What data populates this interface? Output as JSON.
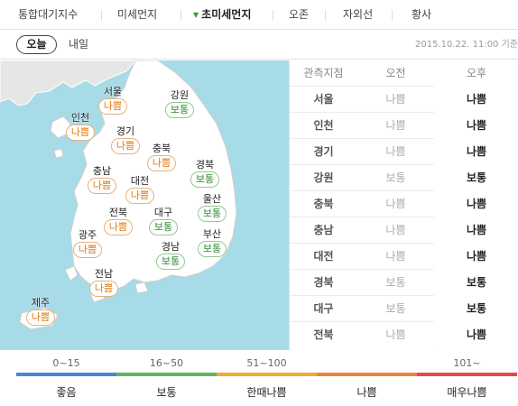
{
  "nav": {
    "tabs": [
      {
        "label": "통합대기지수"
      },
      {
        "label": "미세먼지"
      },
      {
        "label": "초미세먼지"
      },
      {
        "label": "오존"
      },
      {
        "label": "자외선"
      },
      {
        "label": "황사"
      }
    ]
  },
  "day": {
    "today": "오늘",
    "tomorrow": "내일",
    "timestamp": "2015.10.22. 11:00 기준"
  },
  "map": {
    "regions": [
      {
        "name": "서울",
        "status": "나쁨",
        "level": "bad"
      },
      {
        "name": "강원",
        "status": "보통",
        "level": "normal"
      },
      {
        "name": "인천",
        "status": "나쁨",
        "level": "bad"
      },
      {
        "name": "경기",
        "status": "나쁨",
        "level": "bad"
      },
      {
        "name": "충북",
        "status": "나쁨",
        "level": "bad"
      },
      {
        "name": "충남",
        "status": "나쁨",
        "level": "bad"
      },
      {
        "name": "경북",
        "status": "보통",
        "level": "normal"
      },
      {
        "name": "대전",
        "status": "나쁨",
        "level": "bad"
      },
      {
        "name": "울산",
        "status": "보통",
        "level": "normal"
      },
      {
        "name": "전북",
        "status": "나쁨",
        "level": "bad"
      },
      {
        "name": "대구",
        "status": "보통",
        "level": "normal"
      },
      {
        "name": "광주",
        "status": "나쁨",
        "level": "bad"
      },
      {
        "name": "부산",
        "status": "보통",
        "level": "normal"
      },
      {
        "name": "경남",
        "status": "보통",
        "level": "normal"
      },
      {
        "name": "전남",
        "status": "나쁨",
        "level": "bad"
      },
      {
        "name": "제주",
        "status": "나쁨",
        "level": "bad"
      }
    ]
  },
  "table": {
    "headers": [
      "관측지점",
      "오전",
      "오후"
    ],
    "rows": [
      [
        "서울",
        "나쁨",
        "나쁨"
      ],
      [
        "인천",
        "나쁨",
        "나쁨"
      ],
      [
        "경기",
        "나쁨",
        "나쁨"
      ],
      [
        "강원",
        "보통",
        "보통"
      ],
      [
        "충북",
        "나쁨",
        "나쁨"
      ],
      [
        "충남",
        "나쁨",
        "나쁨"
      ],
      [
        "대전",
        "나쁨",
        "나쁨"
      ],
      [
        "경북",
        "보통",
        "보통"
      ],
      [
        "대구",
        "보통",
        "보통"
      ],
      [
        "전북",
        "나쁨",
        "나쁨"
      ]
    ]
  },
  "legend": [
    {
      "range": "0~15",
      "label": "좋음",
      "color": "#4a86d6"
    },
    {
      "range": "16~50",
      "label": "보통",
      "color": "#5cb85c"
    },
    {
      "range": "51~100",
      "label": "한때나쁨",
      "color": "#f0ad2e"
    },
    {
      "range": "",
      "label": "나쁨",
      "color": "#f0843c"
    },
    {
      "range": "101~",
      "label": "매우나쁨",
      "color": "#e5484d"
    }
  ]
}
